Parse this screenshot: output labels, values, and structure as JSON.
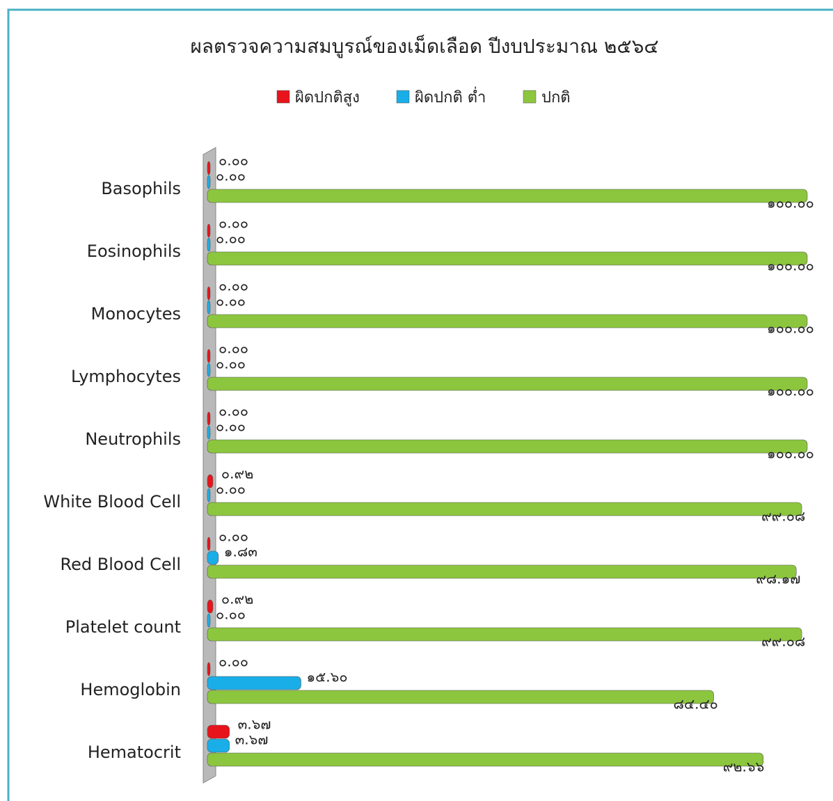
{
  "chart_data": {
    "type": "bar",
    "orientation": "horizontal",
    "title": "ผลตรวจความสมบูรณ์ของเม็ดเลือด ปีงบประมาณ ๒๕๖๔",
    "categories": [
      "Basophils",
      "Eosinophils",
      "Monocytes",
      "Lymphocytes",
      "Neutrophils",
      "White Blood Cell",
      "Red Blood Cell",
      "Platelet count",
      "Hemoglobin",
      "Hematocrit"
    ],
    "series": [
      {
        "name": "ผิดปกติสูง",
        "color": "#e8141c",
        "values": [
          0,
          0,
          0,
          0,
          0,
          0.92,
          0,
          0.92,
          0,
          3.67
        ],
        "value_labels": [
          "๐.๐๐",
          "๐.๐๐",
          "๐.๐๐",
          "๐.๐๐",
          "๐.๐๐",
          "๐.๙๒",
          "๐.๐๐",
          "๐.๙๒",
          "๐.๐๐",
          "๓.๖๗"
        ]
      },
      {
        "name": "ผิดปกติ ต่ำ",
        "color": "#1aaee8",
        "values": [
          0,
          0,
          0,
          0,
          0,
          0,
          1.83,
          0,
          15.6,
          3.67
        ],
        "value_labels": [
          "๐.๐๐",
          "๐.๐๐",
          "๐.๐๐",
          "๐.๐๐",
          "๐.๐๐",
          "๐.๐๐",
          "๑.๘๓",
          "๐.๐๐",
          "๑๕.๖๐",
          "๓.๖๗"
        ]
      },
      {
        "name": "ปกติ",
        "color": "#8cc63e",
        "values": [
          100,
          100,
          100,
          100,
          100,
          99.08,
          98.17,
          99.08,
          84.4,
          92.66
        ],
        "value_labels": [
          "๑๐๐.๐๐",
          "๑๐๐.๐๐",
          "๑๐๐.๐๐",
          "๑๐๐.๐๐",
          "๑๐๐.๐๐",
          "๙๙.๐๘",
          "๙๘.๑๗",
          "๙๙.๐๘",
          "๘๔.๔๐",
          "๙๒.๖๖"
        ]
      }
    ],
    "xlim": [
      0,
      100
    ],
    "legend": "top"
  }
}
